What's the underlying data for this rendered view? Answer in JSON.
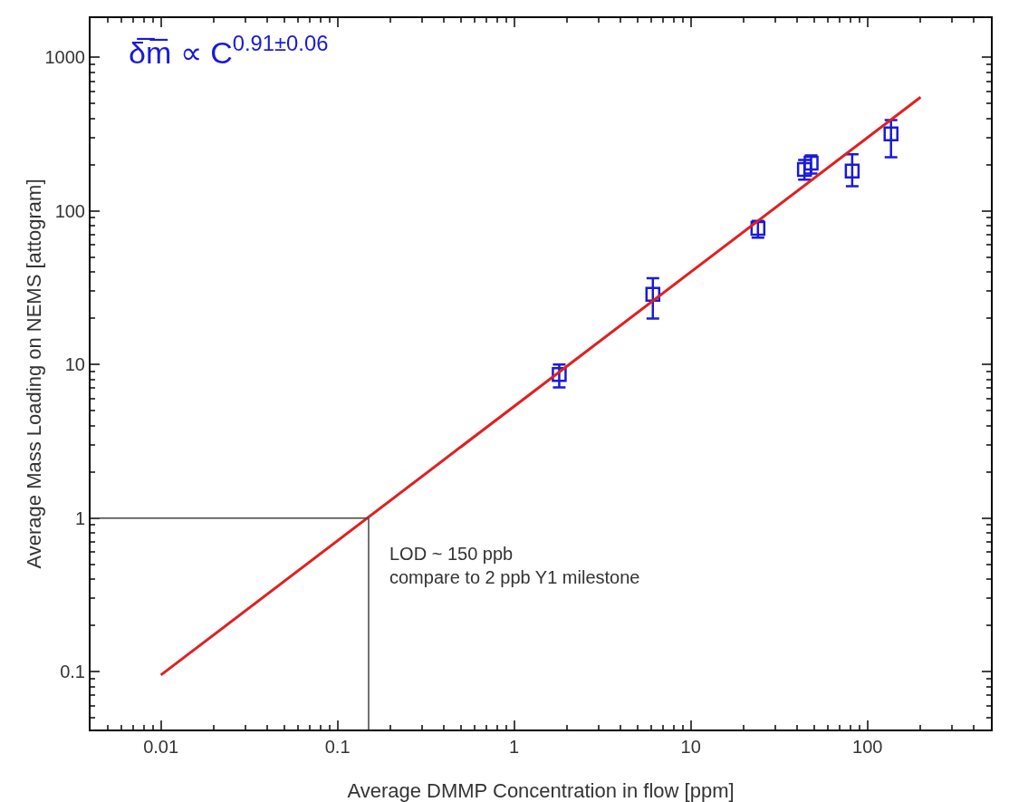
{
  "chart_data": {
    "type": "scatter",
    "xlabel": "Average DMMP Concentration in flow [ppm]",
    "ylabel": "Average Mass Loading on NEMS [attogram]",
    "log": "xy",
    "xlim": [
      0.004,
      500
    ],
    "ylim": [
      0.042,
      1800
    ],
    "xticks": [
      0.01,
      0.1,
      1,
      10,
      100
    ],
    "yticks": [
      0.1,
      1,
      10,
      100,
      1000
    ],
    "grid": false,
    "series": [
      {
        "marker": "square",
        "color": "#1a1ad8",
        "x": [
          1.8,
          6.1,
          24,
          44,
          48,
          82,
          136
        ],
        "values": [
          8.6,
          28.6,
          77,
          186,
          205,
          182,
          317
        ],
        "errors": [
          [
            7.1,
            10
          ],
          [
            19.9,
            36.4
          ],
          [
            67,
            86
          ],
          [
            160,
            215
          ],
          [
            175,
            230
          ],
          [
            145,
            234
          ],
          [
            224,
            390
          ]
        ]
      },
      {
        "type": "line",
        "marker": "none",
        "line_style": "solid",
        "color": "#e02020",
        "x": [
          0.01,
          200
        ],
        "values": [
          0.095,
          550
        ]
      }
    ],
    "ref_lines": [
      {
        "axis": "x",
        "value": 0.15,
        "color": "#444444"
      },
      {
        "axis": "y",
        "value": 1,
        "color": "#444444"
      }
    ],
    "annotations": [
      "δ̅m̅ ∝ C$^{0.91±0.06}$",
      "LOD ~ 150 ppb\ncompare to 2 ppb Y1 milestone"
    ]
  }
}
